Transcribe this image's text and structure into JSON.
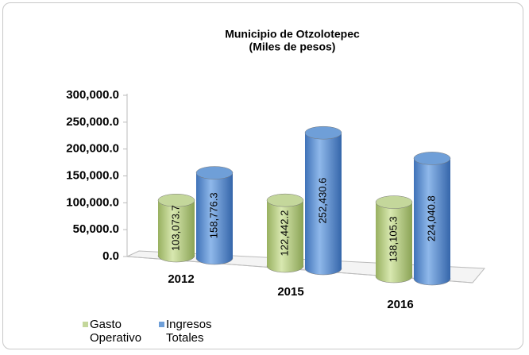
{
  "chart_data": {
    "type": "bar3d",
    "title": "Municipio de Otzolotepec",
    "subtitle": "(Miles de pesos)",
    "categories": [
      "2012",
      "2015",
      "2016"
    ],
    "series": [
      {
        "name": "Gasto Operativo",
        "color": "#c4d79b",
        "values": [
          103073.7,
          122442.2,
          138105.3
        ],
        "value_labels": [
          "103,073.7",
          "122,442.2",
          "138,105.3"
        ]
      },
      {
        "name": "Ingresos Totales",
        "color": "#6f9fd8",
        "values": [
          158776.3,
          252430.6,
          224040.8
        ],
        "value_labels": [
          "158,776.3",
          "252,430.6",
          "224,040.8"
        ]
      }
    ],
    "ylim": [
      0,
      300000
    ],
    "yticks": [
      {
        "value": 0,
        "label": "0.0"
      },
      {
        "value": 50000,
        "label": "50,000.0"
      },
      {
        "value": 100000,
        "label": "100,000.0"
      },
      {
        "value": 150000,
        "label": "150,000.0"
      },
      {
        "value": 200000,
        "label": "200,000.0"
      },
      {
        "value": 250000,
        "label": "250,000.0"
      },
      {
        "value": 300000,
        "label": "300,000.0"
      }
    ],
    "grid": false
  }
}
